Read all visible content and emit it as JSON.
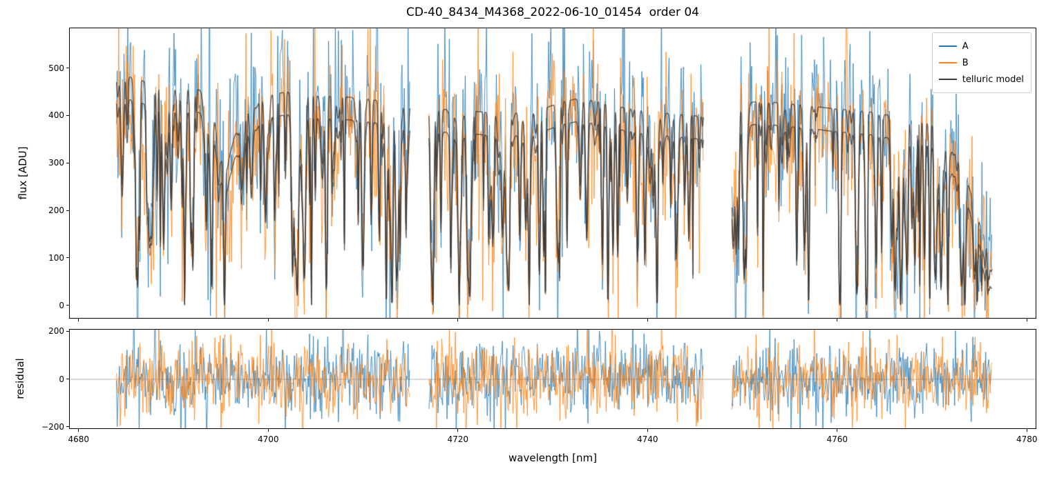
{
  "title": "CD-40_8434_M4368_2022-06-10_01454  order 04",
  "chart_data": {
    "type": "line",
    "title": "CD-40_8434_M4368_2022-06-10_01454  order 04",
    "xlabel": "wavelength [nm]",
    "xlim": [
      4679,
      4781
    ],
    "xticks": [
      4680,
      4700,
      4720,
      4740,
      4760,
      4780
    ],
    "grid": false,
    "legend_position": "upper right",
    "panels": [
      {
        "name": "flux",
        "ylabel": "flux [ADU]",
        "ylim": [
          -28,
          585
        ],
        "yticks": [
          0,
          100,
          200,
          300,
          400,
          500
        ]
      },
      {
        "name": "residual",
        "ylabel": "residual",
        "ylim": [
          -210,
          210
        ],
        "yticks": [
          -200,
          0,
          200
        ],
        "zero_line": true
      }
    ],
    "series": [
      {
        "name": "A",
        "color": "#1f77b4",
        "role": "observed spectrum beam A, noisy"
      },
      {
        "name": "B",
        "color": "#ff7f0e",
        "role": "observed spectrum beam B, noisy"
      },
      {
        "name": "telluric model",
        "color": "#3b3734",
        "role": "smooth telluric absorption model, two traces (A and B continua)"
      }
    ],
    "segments": [
      [
        4684,
        4715
      ],
      [
        4717,
        4746
      ],
      [
        4749,
        4776.5
      ]
    ],
    "continuum_upper": [
      [
        4684,
        492
      ],
      [
        4686,
        478
      ],
      [
        4688,
        467
      ],
      [
        4690,
        457
      ],
      [
        4691,
        449
      ],
      [
        4692,
        461
      ],
      [
        4693,
        452
      ],
      [
        4694,
        427
      ],
      [
        4695,
        320
      ],
      [
        4695.7,
        295
      ],
      [
        4696.5,
        358
      ],
      [
        4698,
        413
      ],
      [
        4700,
        444
      ],
      [
        4702,
        450
      ],
      [
        4704,
        446
      ],
      [
        4706,
        441
      ],
      [
        4708,
        440
      ],
      [
        4710,
        437
      ],
      [
        4712,
        431
      ],
      [
        4714,
        427
      ],
      [
        4715,
        421
      ],
      [
        4717,
        408
      ],
      [
        4719,
        414
      ],
      [
        4721,
        411
      ],
      [
        4723,
        407
      ],
      [
        4725,
        404
      ],
      [
        4727,
        407
      ],
      [
        4729,
        414
      ],
      [
        4731,
        429
      ],
      [
        4733,
        437
      ],
      [
        4735,
        429
      ],
      [
        4737,
        419
      ],
      [
        4739,
        412
      ],
      [
        4741,
        407
      ],
      [
        4743,
        404
      ],
      [
        4745,
        400
      ],
      [
        4746,
        398
      ],
      [
        4749,
        404
      ],
      [
        4750,
        418
      ],
      [
        4751,
        428
      ],
      [
        4752,
        431
      ],
      [
        4754,
        427
      ],
      [
        4756,
        423
      ],
      [
        4758,
        419
      ],
      [
        4760,
        414
      ],
      [
        4762,
        411
      ],
      [
        4764,
        407
      ],
      [
        4766,
        399
      ],
      [
        4768,
        394
      ],
      [
        4770,
        384
      ],
      [
        4771,
        369
      ],
      [
        4772,
        344
      ],
      [
        4773,
        308
      ],
      [
        4774,
        252
      ],
      [
        4775,
        183
      ],
      [
        4776,
        118
      ],
      [
        4776.5,
        88
      ]
    ],
    "continuum_offset_B": -48,
    "deep_line_positions": [
      4691.2,
      4695.4,
      4704.6,
      4712.5,
      4713.1,
      4717.4,
      4720.2,
      4727.6,
      4729.3,
      4735.9,
      4741.1,
      4746.6,
      4752.3,
      4757.1,
      4760.4,
      4763.2,
      4766.8,
      4769.9,
      4771.8,
      4773.6,
      4774.9
    ],
    "noise_std_flux": 78,
    "noise_std_residual": 75,
    "sample_step_nm": 0.04
  }
}
